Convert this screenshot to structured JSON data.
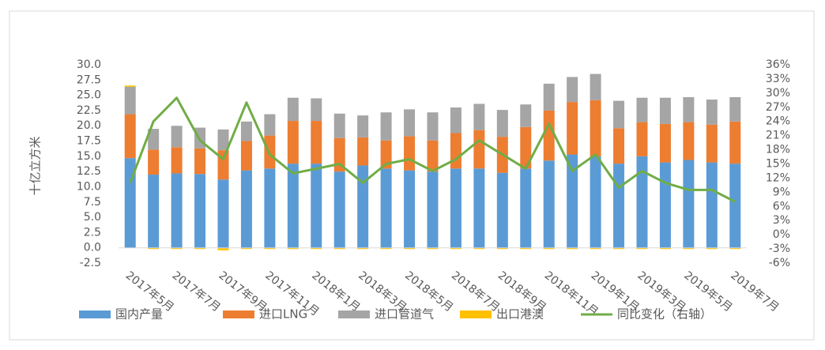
{
  "chart_data": {
    "type": "bar",
    "y_label": "十亿立方米",
    "categories": [
      "2017年5月",
      null,
      "2017年7月",
      null,
      "2017年9月",
      null,
      "2017年11月",
      null,
      "2018年1月",
      null,
      "2018年3月",
      null,
      "2018年5月",
      null,
      "2018年7月",
      null,
      "2018年9月",
      null,
      "2018年11月",
      null,
      "2019年1月",
      null,
      "2019年3月",
      null,
      "2019年5月",
      null,
      "2019年7月"
    ],
    "series": [
      {
        "name": "国内产量",
        "color": "#5b9bd5",
        "values": [
          14.7,
          12.0,
          12.2,
          12.1,
          11.2,
          12.7,
          13.0,
          13.8,
          13.8,
          12.5,
          13.5,
          13.0,
          12.7,
          12.5,
          13.0,
          13.0,
          12.3,
          13.0,
          14.3,
          15.3,
          15.0,
          13.8,
          15.0,
          14.0,
          14.4,
          14.0,
          13.8
        ]
      },
      {
        "name": "进口LNG",
        "color": "#ed7d31",
        "values": [
          7.2,
          4.1,
          4.3,
          4.2,
          4.8,
          4.8,
          5.4,
          7.0,
          7.0,
          5.5,
          4.6,
          4.6,
          5.6,
          5.1,
          5.8,
          6.3,
          5.9,
          6.8,
          8.2,
          8.6,
          9.2,
          5.8,
          5.6,
          6.3,
          6.2,
          6.2,
          6.9
        ]
      },
      {
        "name": "进口管道气",
        "color": "#a5a5a5",
        "values": [
          4.5,
          3.4,
          3.5,
          3.4,
          3.4,
          3.2,
          3.5,
          3.8,
          3.7,
          4.0,
          3.6,
          4.6,
          4.4,
          4.6,
          4.2,
          4.3,
          4.4,
          3.7,
          4.4,
          4.1,
          4.3,
          4.5,
          4.0,
          4.3,
          4.1,
          4.1,
          4.0
        ]
      },
      {
        "name": "出口港澳",
        "color": "#ffc000",
        "values": [
          0.2,
          -0.2,
          -0.2,
          -0.2,
          -0.4,
          -0.2,
          -0.2,
          -0.2,
          -0.2,
          -0.2,
          -0.2,
          -0.2,
          -0.2,
          -0.2,
          -0.2,
          -0.2,
          -0.2,
          -0.2,
          -0.2,
          -0.2,
          -0.2,
          -0.2,
          -0.2,
          -0.2,
          -0.2,
          -0.2,
          -0.2
        ]
      },
      {
        "name": "同比变化（右轴）",
        "color": "#70ad47",
        "type": "line",
        "axis": "y2",
        "values": [
          11,
          24,
          29,
          20,
          16,
          28,
          17,
          13,
          14,
          15,
          11,
          15,
          16,
          13.5,
          16,
          20,
          17,
          14,
          23.5,
          13.5,
          17,
          10,
          13.5,
          11,
          9.5,
          9.5,
          7
        ]
      }
    ],
    "ylim": [
      -2.5,
      30
    ],
    "yticks": [
      {
        "value": -2.5,
        "label": "-2.5"
      },
      {
        "value": 0,
        "label": "0.0"
      },
      {
        "value": 2.5,
        "label": "2.5"
      },
      {
        "value": 5,
        "label": "5.0"
      },
      {
        "value": 7.5,
        "label": "7.5"
      },
      {
        "value": 10,
        "label": "10.0"
      },
      {
        "value": 12.5,
        "label": "12.5"
      },
      {
        "value": 15,
        "label": "15.0"
      },
      {
        "value": 17.5,
        "label": "17.5"
      },
      {
        "value": 20,
        "label": "20.0"
      },
      {
        "value": 22.5,
        "label": "22.5"
      },
      {
        "value": 25,
        "label": "25.0"
      },
      {
        "value": 27.5,
        "label": "27.5"
      },
      {
        "value": 30,
        "label": "30.0"
      }
    ],
    "y2lim": [
      -6,
      36
    ],
    "y2ticks": [
      {
        "value": -6,
        "label": "-6%"
      },
      {
        "value": -3,
        "label": "-3%"
      },
      {
        "value": 0,
        "label": "0%"
      },
      {
        "value": 3,
        "label": "3%"
      },
      {
        "value": 6,
        "label": "6%"
      },
      {
        "value": 9,
        "label": "9%"
      },
      {
        "value": 12,
        "label": "12%"
      },
      {
        "value": 15,
        "label": "15%"
      },
      {
        "value": 18,
        "label": "18%"
      },
      {
        "value": 21,
        "label": "21%"
      },
      {
        "value": 24,
        "label": "24%"
      },
      {
        "value": 27,
        "label": "27%"
      },
      {
        "value": 30,
        "label": "30%"
      },
      {
        "value": 33,
        "label": "33%"
      },
      {
        "value": 36,
        "label": "36%"
      }
    ],
    "legend": "bottom"
  }
}
